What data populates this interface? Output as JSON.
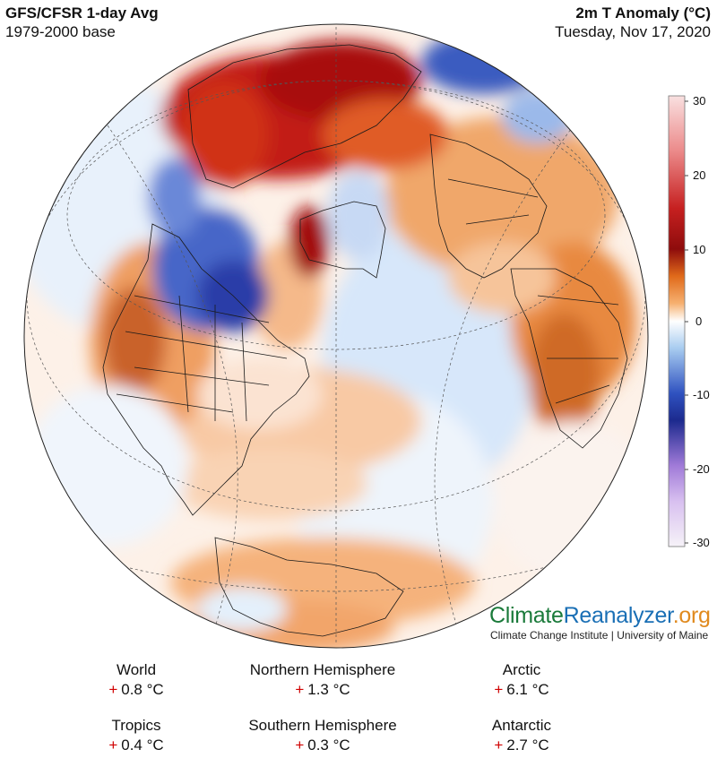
{
  "header": {
    "left_title": "GFS/CFSR 1-day Avg",
    "left_subtitle": "1979-2000 base",
    "right_title": "2m T Anomaly (°C)",
    "right_subtitle": "Tuesday, Nov 17, 2020"
  },
  "colorbar": {
    "ticks": [
      "30",
      "20",
      "10",
      "0",
      "-10",
      "-20",
      "-30"
    ],
    "colors": [
      "#f7d6d6",
      "#e25b5b",
      "#a80f0f",
      "#f08030",
      "#ffffff",
      "#2438a8",
      "#c8a8e8",
      "#f5f0f8"
    ]
  },
  "brand": {
    "climate": "Climate",
    "reanalyzer": "Reanalyzer",
    "org": ".org",
    "subtitle": "Climate Change Institute | University of Maine",
    "colors": {
      "climate": "#1a7a3a",
      "reanalyzer": "#1a6fb5",
      "org": "#e08a1e"
    }
  },
  "stats": [
    {
      "name": "World",
      "sign": "+",
      "value": "0.8 °C"
    },
    {
      "name": "Northern Hemisphere",
      "sign": "+",
      "value": "1.3 °C"
    },
    {
      "name": "Arctic",
      "sign": "+",
      "value": "6.1 °C"
    },
    {
      "name": "Tropics",
      "sign": "+",
      "value": "0.4 °C"
    },
    {
      "name": "Southern Hemisphere",
      "sign": "+",
      "value": "0.3 °C"
    },
    {
      "name": "Antarctic",
      "sign": "+",
      "value": "2.7 °C"
    }
  ]
}
